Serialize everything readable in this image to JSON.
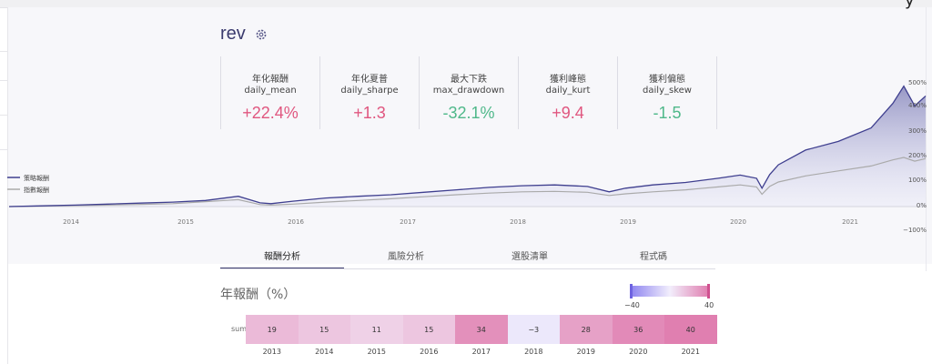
{
  "app": {
    "corner_glyph": "y"
  },
  "strategy": {
    "title": "rev",
    "settings_icon": "gear-icon"
  },
  "metrics": [
    {
      "zh": "年化報酬",
      "en": "daily_mean",
      "value": "+22.4%",
      "color": "#e0567f"
    },
    {
      "zh": "年化夏普",
      "en": "daily_sharpe",
      "value": "+1.3",
      "color": "#e0567f"
    },
    {
      "zh": "最大下跌",
      "en": "max_drawdown",
      "value": "-32.1%",
      "color": "#4fb88a"
    },
    {
      "zh": "獲利峰態",
      "en": "daily_kurt",
      "value": "+9.4",
      "color": "#e0567f"
    },
    {
      "zh": "獲利偏態",
      "en": "daily_skew",
      "value": "-1.5",
      "color": "#4fb88a"
    }
  ],
  "tabs": [
    {
      "label": "報酬分析",
      "active": true
    },
    {
      "label": "風險分析",
      "active": false
    },
    {
      "label": "選股清單",
      "active": false
    },
    {
      "label": "程式碼",
      "active": false
    }
  ],
  "annual": {
    "title": "年報酬（%）",
    "row_label": "sum",
    "colorbar_min": "−40",
    "colorbar_max": "40"
  },
  "colors": {
    "strategy": "#3f3f8f",
    "benchmark": "#aaaaaa",
    "accent": "#3b3b6e"
  },
  "chart_data": [
    {
      "type": "line",
      "series": [
        {
          "name": "策略報酬",
          "color": "#3f3f8f",
          "x": [
            2013.3,
            2013.6,
            2013.9,
            2014.2,
            2014.5,
            2014.8,
            2015.1,
            2015.4,
            2015.6,
            2015.7,
            2015.9,
            2016.2,
            2016.5,
            2016.8,
            2017.1,
            2017.4,
            2017.7,
            2018.0,
            2018.3,
            2018.6,
            2018.8,
            2018.95,
            2019.2,
            2019.5,
            2019.8,
            2020.0,
            2020.15,
            2020.2,
            2020.27,
            2020.35,
            2020.6,
            2020.9,
            2021.2,
            2021.4,
            2021.5,
            2021.6,
            2021.7
          ],
          "y": [
            0,
            3,
            6,
            10,
            14,
            18,
            25,
            42,
            15,
            12,
            22,
            35,
            42,
            48,
            58,
            68,
            78,
            85,
            88,
            82,
            60,
            75,
            88,
            98,
            115,
            128,
            115,
            75,
            130,
            170,
            230,
            265,
            320,
            420,
            490,
            410,
            450
          ]
        },
        {
          "name": "指數報酬",
          "color": "#aaaaaa",
          "x": [
            2013.3,
            2013.6,
            2013.9,
            2014.2,
            2014.5,
            2014.8,
            2015.1,
            2015.4,
            2015.6,
            2015.7,
            2015.9,
            2016.2,
            2016.5,
            2016.8,
            2017.1,
            2017.4,
            2017.7,
            2018.0,
            2018.3,
            2018.6,
            2018.8,
            2018.95,
            2019.2,
            2019.5,
            2019.8,
            2020.0,
            2020.15,
            2020.2,
            2020.27,
            2020.35,
            2020.6,
            2020.9,
            2021.2,
            2021.4,
            2021.5,
            2021.6,
            2021.7
          ],
          "y": [
            0,
            2,
            4,
            6,
            9,
            12,
            20,
            28,
            8,
            6,
            10,
            18,
            25,
            32,
            40,
            48,
            55,
            60,
            62,
            58,
            45,
            52,
            60,
            68,
            80,
            88,
            80,
            50,
            82,
            100,
            125,
            145,
            165,
            190,
            200,
            185,
            195
          ]
        }
      ],
      "x_ticks": [
        "2014",
        "2015",
        "2016",
        "2017",
        "2018",
        "2019",
        "2020",
        "2021"
      ],
      "y_ticks": [
        "500%",
        "400%",
        "300%",
        "200%",
        "100%",
        "0%",
        "−100%"
      ],
      "grid": false,
      "legend": "left"
    },
    {
      "type": "heatmap",
      "row_label": "sum",
      "categories": [
        "2013",
        "2014",
        "2015",
        "2016",
        "2017",
        "2018",
        "2019",
        "2020",
        "2021"
      ],
      "labels": [
        "19",
        "15",
        "11",
        "15",
        "34",
        "−3",
        "28",
        "36",
        "40"
      ],
      "values": [
        19,
        15,
        11,
        15,
        34,
        -3,
        28,
        36,
        40
      ],
      "range": [
        -40,
        40
      ]
    }
  ]
}
